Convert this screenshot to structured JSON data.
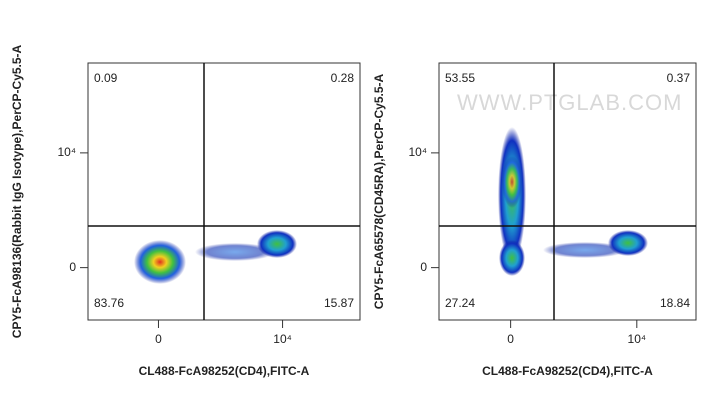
{
  "chart_data": [
    {
      "type": "quadrant",
      "x_label": "CL488-FcA98252(CD4),FITC-A",
      "y_label": "CPY5-FcA98136(Rabbit IgG Isotype),PerCP-Cy5.5-A",
      "xlim": [
        -2000,
        100000
      ],
      "ylim": [
        -1300,
        180000
      ],
      "xticks": [
        0,
        {
          "value": 10000,
          "label": "10⁴"
        }
      ],
      "yticks": [
        0,
        {
          "value": 10000,
          "label": "10⁴"
        }
      ],
      "values": [
        0.09,
        0.28,
        83.76,
        15.87
      ]
    },
    {
      "type": "quadrant",
      "x_label": "CL488-FcA98252(CD4),FITC-A",
      "y_label": "CPY5-FcA65578(CD45RA),PerCP-Cy5.5-A",
      "xlim": [
        -2000,
        56500
      ],
      "ylim": [
        -1300,
        180000
      ],
      "xticks": [
        0,
        {
          "value": 10000,
          "label": "10⁴"
        }
      ],
      "yticks": [
        0,
        {
          "value": 10000,
          "label": "10⁴"
        }
      ],
      "values": [
        53.55,
        0.37,
        27.24,
        18.84
      ],
      "watermark": "WWW.PTGLAB.COM"
    }
  ]
}
